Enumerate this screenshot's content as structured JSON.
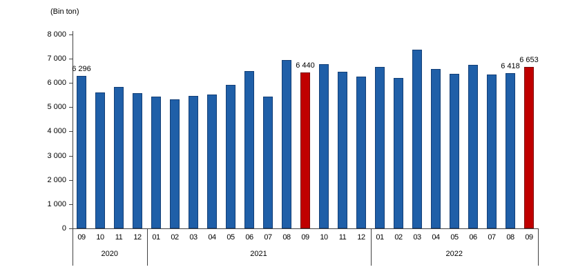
{
  "chart_data": {
    "type": "bar",
    "title": "",
    "unit_label": "(Bin ton)",
    "xlabel": "",
    "ylabel": "",
    "ylim": [
      0,
      8000
    ],
    "ytick_interval": 1000,
    "ytick_labels": [
      "0",
      "1 000",
      "2 000",
      "3 000",
      "4 000",
      "5 000",
      "6 000",
      "7 000",
      "8 000"
    ],
    "grid": false,
    "legend": false,
    "groups": [
      {
        "year": "2020",
        "months": [
          "09",
          "10",
          "11",
          "12"
        ],
        "values": [
          6296,
          5620,
          5840,
          5575
        ]
      },
      {
        "year": "2021",
        "months": [
          "01",
          "02",
          "03",
          "04",
          "05",
          "06",
          "07",
          "08",
          "09",
          "10",
          "11",
          "12"
        ],
        "values": [
          5435,
          5320,
          5480,
          5520,
          5920,
          6495,
          5435,
          6960,
          6440,
          6790,
          6460,
          6270
        ]
      },
      {
        "year": "2022",
        "months": [
          "01",
          "02",
          "03",
          "04",
          "05",
          "06",
          "07",
          "08",
          "09"
        ],
        "values": [
          6670,
          6215,
          7370,
          6590,
          6385,
          6745,
          6345,
          6418,
          6653
        ]
      }
    ],
    "highlighted_bars": [
      {
        "year": "2021",
        "month": "09"
      },
      {
        "year": "2022",
        "month": "09"
      }
    ],
    "data_labels": [
      {
        "year": "2020",
        "month": "09",
        "text": "6 296"
      },
      {
        "year": "2021",
        "month": "09",
        "text": "6 440"
      },
      {
        "year": "2022",
        "month": "08",
        "text": "6 418"
      },
      {
        "year": "2022",
        "month": "09",
        "text": "6 653"
      }
    ],
    "colors": {
      "bar_fill": "#1F5FA8",
      "bar_border": "#123E76",
      "highlight_fill": "#C00000",
      "highlight_border": "#7A0C0C",
      "axis": "#404040",
      "text": "#000000"
    }
  }
}
